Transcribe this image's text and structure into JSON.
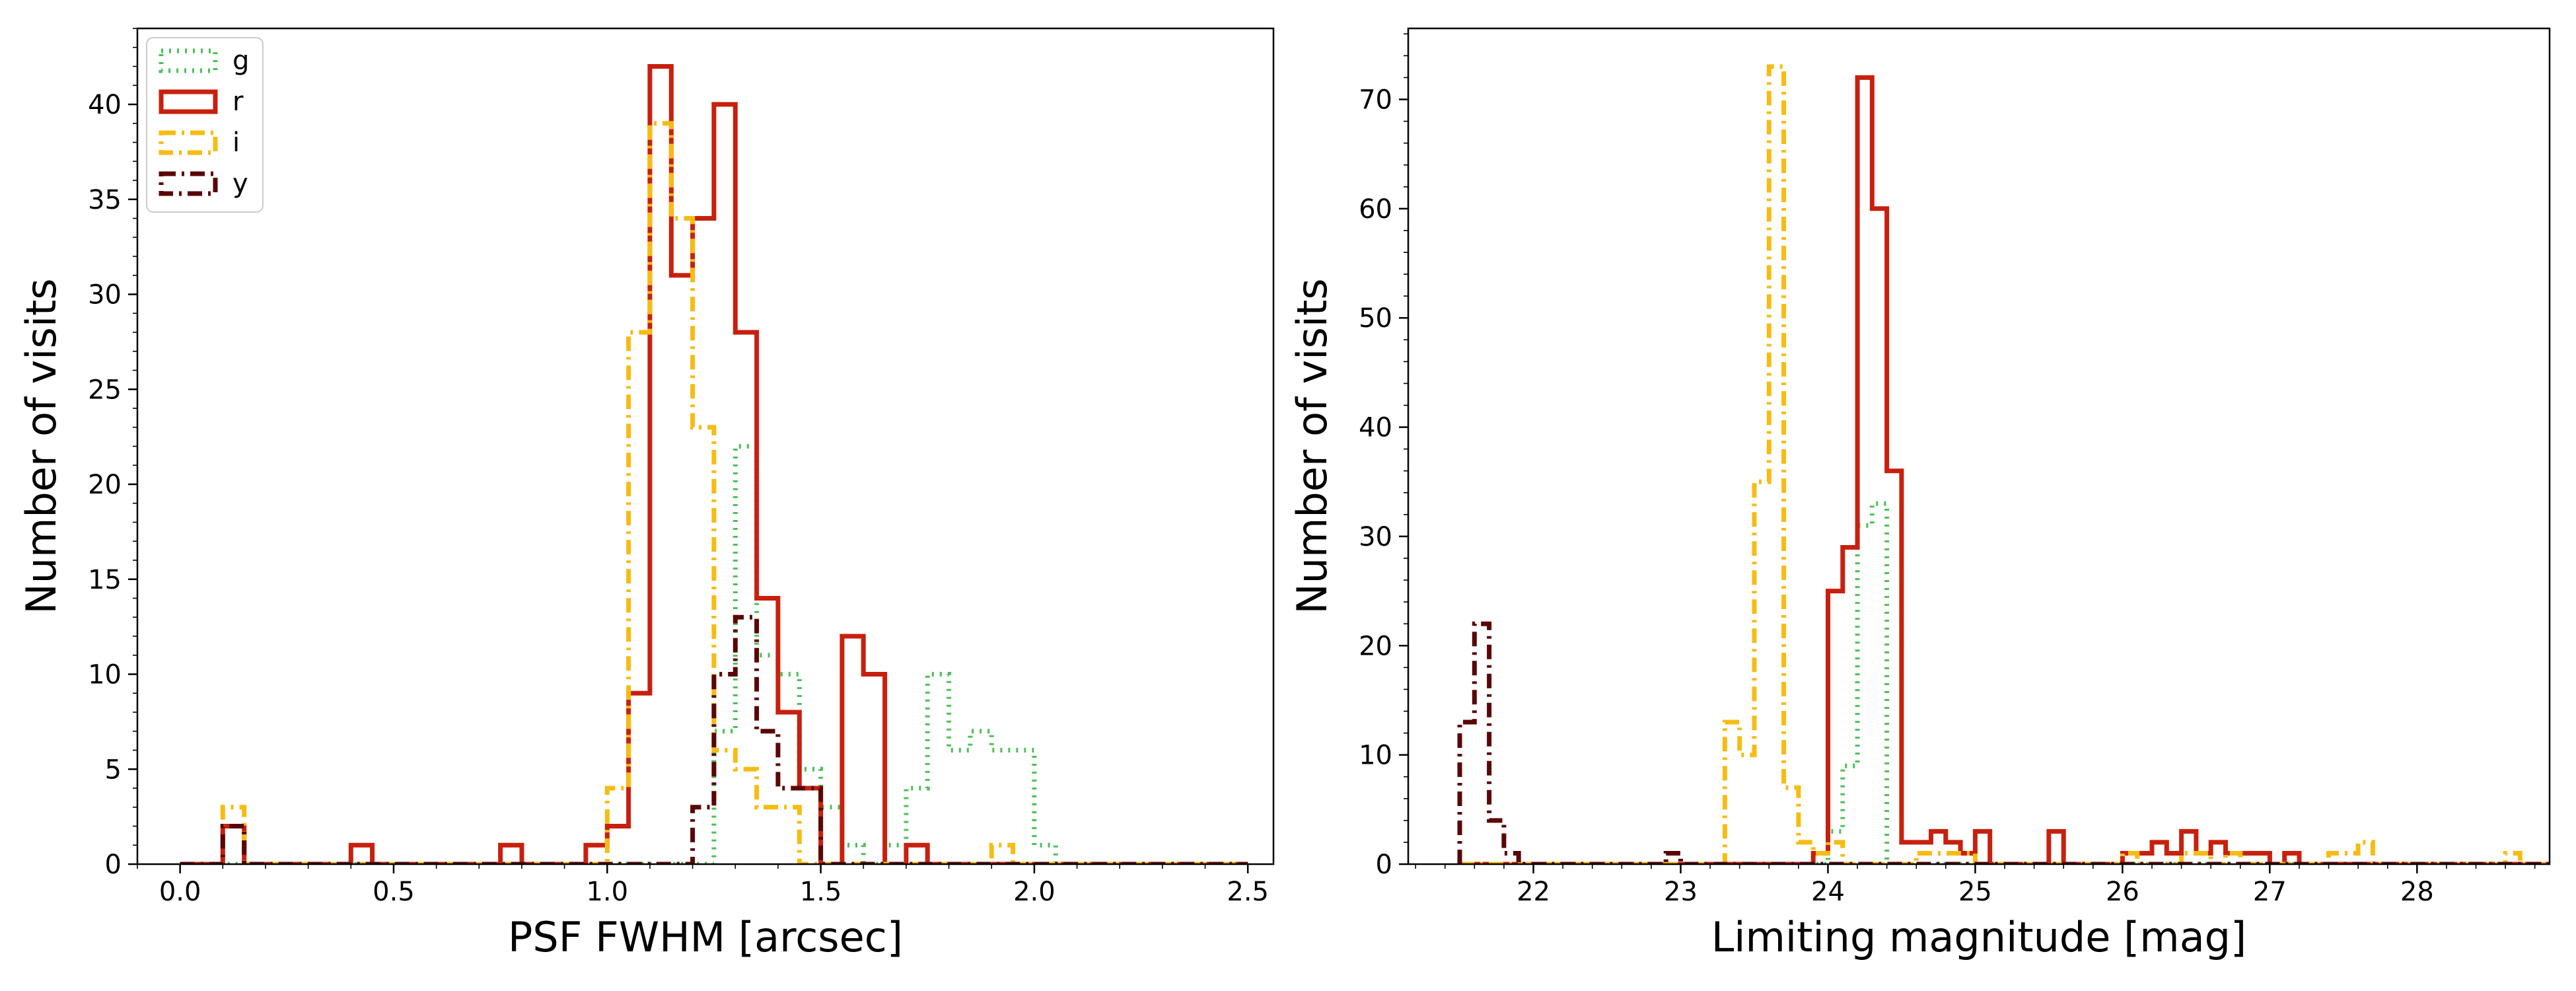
{
  "chart_data": [
    {
      "type": "histogram",
      "xlabel": "PSF FWHM [arcsec]",
      "ylabel": "Number of visits",
      "xlim": [
        -0.1,
        2.56
      ],
      "ylim": [
        0,
        44
      ],
      "x_ticks": [
        0.0,
        0.5,
        1.0,
        1.5,
        2.0,
        2.5
      ],
      "x_tick_labels": [
        "0.0",
        "0.5",
        "1.0",
        "1.5",
        "2.0",
        "2.5"
      ],
      "y_ticks": [
        0,
        5,
        10,
        15,
        20,
        25,
        30,
        35,
        40
      ],
      "y_tick_labels": [
        "0",
        "5",
        "10",
        "15",
        "20",
        "25",
        "30",
        "35",
        "40"
      ],
      "legend_position": "top-left",
      "bin_start": 0.0,
      "bin_width": 0.05,
      "series": [
        {
          "name": "g",
          "color": "#4dbf5a",
          "style": "dotted",
          "counts": [
            0,
            0,
            0,
            0,
            0,
            0,
            0,
            0,
            0,
            0,
            0,
            0,
            0,
            0,
            0,
            0,
            0,
            0,
            0,
            1,
            0,
            0,
            0,
            0,
            0,
            7,
            22,
            11,
            10,
            5,
            3,
            1,
            0,
            1,
            4,
            10,
            6,
            7,
            6,
            6,
            1,
            0,
            0,
            0,
            0,
            0,
            0,
            0,
            0,
            0
          ]
        },
        {
          "name": "r",
          "color": "#c8200e",
          "style": "solid",
          "counts": [
            0,
            0,
            2,
            0,
            0,
            0,
            0,
            0,
            1,
            0,
            0,
            0,
            0,
            0,
            0,
            1,
            0,
            0,
            0,
            1,
            2,
            9,
            42,
            31,
            34,
            40,
            28,
            14,
            8,
            4,
            0,
            12,
            10,
            0,
            1,
            0,
            0,
            0,
            0,
            0,
            0,
            0,
            0,
            0,
            0,
            0,
            0,
            0,
            0,
            0
          ]
        },
        {
          "name": "i",
          "color": "#f6bc14",
          "style": "dashdot",
          "counts": [
            0,
            0,
            3,
            0,
            0,
            0,
            0,
            0,
            0,
            0,
            0,
            0,
            0,
            0,
            0,
            0,
            0,
            0,
            0,
            0,
            4,
            28,
            39,
            34,
            23,
            6,
            5,
            3,
            3,
            0,
            0,
            0,
            0,
            0,
            0,
            0,
            0,
            0,
            1,
            0,
            0,
            0,
            0,
            0,
            0,
            0,
            0,
            0,
            0,
            0
          ]
        },
        {
          "name": "y",
          "color": "#5a0606",
          "style": "dashdot",
          "counts": [
            0,
            0,
            2,
            0,
            0,
            0,
            0,
            0,
            0,
            0,
            0,
            0,
            0,
            0,
            0,
            0,
            0,
            0,
            0,
            0,
            0,
            0,
            0,
            0,
            3,
            10,
            13,
            7,
            4,
            4,
            0,
            0,
            0,
            0,
            0,
            0,
            0,
            0,
            0,
            0,
            0,
            0,
            0,
            0,
            0,
            0,
            0,
            0,
            0,
            0
          ]
        }
      ]
    },
    {
      "type": "histogram",
      "xlabel": "Limiting magnitude [mag]",
      "ylabel": "Number of visits",
      "xlim": [
        21.15,
        28.9
      ],
      "ylim": [
        0,
        76.5
      ],
      "x_ticks": [
        22,
        23,
        24,
        25,
        26,
        27,
        28
      ],
      "x_tick_labels": [
        "22",
        "23",
        "24",
        "25",
        "26",
        "27",
        "28"
      ],
      "y_ticks": [
        0,
        10,
        20,
        30,
        40,
        50,
        60,
        70
      ],
      "y_tick_labels": [
        "0",
        "10",
        "20",
        "30",
        "40",
        "50",
        "60",
        "70"
      ],
      "bin_start": 21.5,
      "bin_width": 0.1,
      "series": [
        {
          "name": "g",
          "color": "#4dbf5a",
          "style": "dotted",
          "counts": [
            0,
            0,
            0,
            0,
            0,
            0,
            0,
            0,
            0,
            0,
            0,
            0,
            0,
            0,
            0,
            0,
            0,
            0,
            0,
            0,
            0,
            0,
            0,
            0,
            0,
            3,
            9,
            31,
            33,
            0,
            0,
            0,
            0,
            0,
            0,
            0,
            0,
            0,
            0,
            0,
            0,
            0,
            0,
            0,
            0,
            0,
            0,
            0,
            0,
            0,
            0,
            0,
            0,
            0,
            0,
            0,
            0,
            0,
            0,
            0,
            0,
            0,
            0,
            0,
            0,
            0,
            0,
            0,
            0,
            0,
            0,
            0,
            0,
            0
          ]
        },
        {
          "name": "r",
          "color": "#c8200e",
          "style": "solid",
          "counts": [
            0,
            0,
            0,
            0,
            0,
            0,
            0,
            0,
            0,
            0,
            0,
            0,
            0,
            0,
            0,
            0,
            0,
            0,
            0,
            0,
            0,
            0,
            0,
            0,
            1,
            25,
            29,
            72,
            60,
            36,
            2,
            2,
            3,
            2,
            1,
            3,
            0,
            0,
            0,
            0,
            3,
            0,
            0,
            0,
            0,
            1,
            1,
            2,
            1,
            3,
            1,
            2,
            1,
            1,
            1,
            0,
            1,
            0,
            0,
            0,
            0,
            0,
            0,
            0,
            0,
            0,
            0,
            0,
            0,
            0,
            0,
            0,
            0,
            0
          ]
        },
        {
          "name": "i",
          "color": "#f6bc14",
          "style": "dashdot",
          "counts": [
            0,
            0,
            0,
            0,
            0,
            0,
            0,
            0,
            0,
            0,
            0,
            0,
            0,
            0,
            0,
            0,
            0,
            0,
            13,
            10,
            35,
            73,
            7,
            2,
            1,
            2,
            0,
            0,
            0,
            0,
            0,
            1,
            1,
            1,
            1,
            0,
            0,
            0,
            0,
            0,
            0,
            0,
            0,
            0,
            0,
            1,
            0,
            0,
            0,
            1,
            1,
            0,
            1,
            0,
            0,
            0,
            0,
            0,
            0,
            1,
            1,
            2,
            0,
            0,
            0,
            0,
            0,
            0,
            0,
            0,
            0,
            1,
            0,
            0
          ]
        },
        {
          "name": "y",
          "color": "#5a0606",
          "style": "dashdot",
          "counts": [
            13,
            22,
            4,
            1,
            0,
            0,
            0,
            0,
            0,
            0,
            0,
            0,
            0,
            0,
            1,
            0,
            0,
            0,
            0,
            0,
            0,
            0,
            0,
            0,
            0,
            0,
            0,
            0,
            0,
            0,
            0,
            0,
            0,
            0,
            0,
            0,
            0,
            0,
            0,
            0,
            0,
            0,
            0,
            0,
            0,
            0,
            0,
            0,
            0,
            0,
            0,
            0,
            0,
            0,
            0,
            0,
            0,
            0,
            0,
            0,
            0,
            0,
            0,
            0,
            0,
            0,
            0,
            0,
            0,
            0,
            0,
            0,
            0,
            0
          ]
        }
      ]
    }
  ]
}
